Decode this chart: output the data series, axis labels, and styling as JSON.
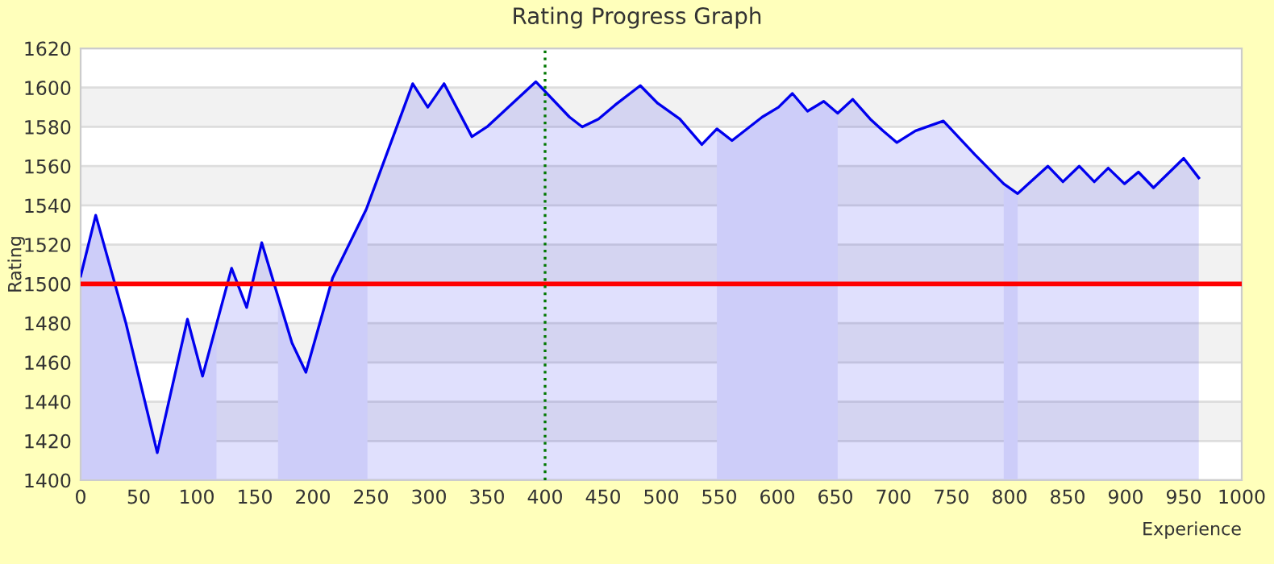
{
  "chart_data": {
    "type": "area",
    "title": "Rating Progress Graph",
    "xlabel": "Experience",
    "ylabel": "Rating",
    "series": [
      {
        "color": "#0000ee",
        "x": [
          0,
          13,
          39,
          66,
          92,
          105,
          130,
          143,
          156,
          182,
          194,
          217,
          246,
          286,
          299,
          313,
          337,
          350,
          392,
          421,
          432,
          446,
          460,
          482,
          497,
          516,
          535,
          548,
          561,
          587,
          601,
          613,
          626,
          640,
          652,
          665,
          680,
          691,
          703,
          719,
          743,
          770,
          795,
          807,
          833,
          846,
          860,
          873,
          885,
          899,
          911,
          924,
          950,
          963
        ],
        "values": [
          1504,
          1535,
          1480,
          1414,
          1482,
          1453,
          1508,
          1488,
          1521,
          1470,
          1455,
          1503,
          1538,
          1602,
          1590,
          1602,
          1575,
          1580,
          1603,
          1585,
          1580,
          1584,
          1591,
          1601,
          1592,
          1584,
          1571,
          1579,
          1573,
          1585,
          1590,
          1597,
          1588,
          1593,
          1587,
          1594,
          1584,
          1578,
          1572,
          1578,
          1583,
          1566,
          1551,
          1546,
          1560,
          1552,
          1560,
          1552,
          1559,
          1551,
          1557,
          1549,
          1564,
          1554
        ]
      },
      {
        "color": "#cdcdf9",
        "x": [
          0,
          13,
          39,
          66,
          92,
          105,
          117
        ],
        "values": [
          1504,
          1535,
          1480,
          1414,
          1482,
          1453,
          1479
        ]
      },
      {
        "color": "#cdcdf9",
        "x": [
          170,
          182,
          194,
          217,
          247
        ],
        "values": [
          1494,
          1470,
          1455,
          1503,
          1540
        ]
      },
      {
        "color": "#cdcdf9",
        "x": [
          548,
          561,
          587,
          601,
          613,
          626,
          640,
          652
        ],
        "values": [
          1579,
          1573,
          1585,
          1590,
          1597,
          1588,
          1593,
          1587
        ]
      },
      {
        "color": "#cdcdf9",
        "x": [
          795,
          807
        ],
        "values": [
          1551,
          1546
        ]
      }
    ],
    "ref_lines": [
      {
        "axis": "y",
        "value": 1500,
        "color": "#ff0000",
        "line_style": "solid"
      },
      {
        "axis": "x",
        "value": 400,
        "color": "#007700",
        "line_style": "dotted"
      }
    ],
    "xlim": [
      0,
      1000
    ],
    "xticks": [
      0,
      50,
      100,
      150,
      200,
      250,
      300,
      350,
      400,
      450,
      500,
      550,
      600,
      650,
      700,
      750,
      800,
      850,
      900,
      950,
      1000
    ],
    "ylim": [
      1400,
      1620
    ],
    "yticks": [
      1400,
      1420,
      1440,
      1460,
      1480,
      1500,
      1520,
      1540,
      1560,
      1580,
      1600,
      1620
    ],
    "grid": "y",
    "legend": false,
    "marker": "none",
    "line_style": "solid"
  }
}
